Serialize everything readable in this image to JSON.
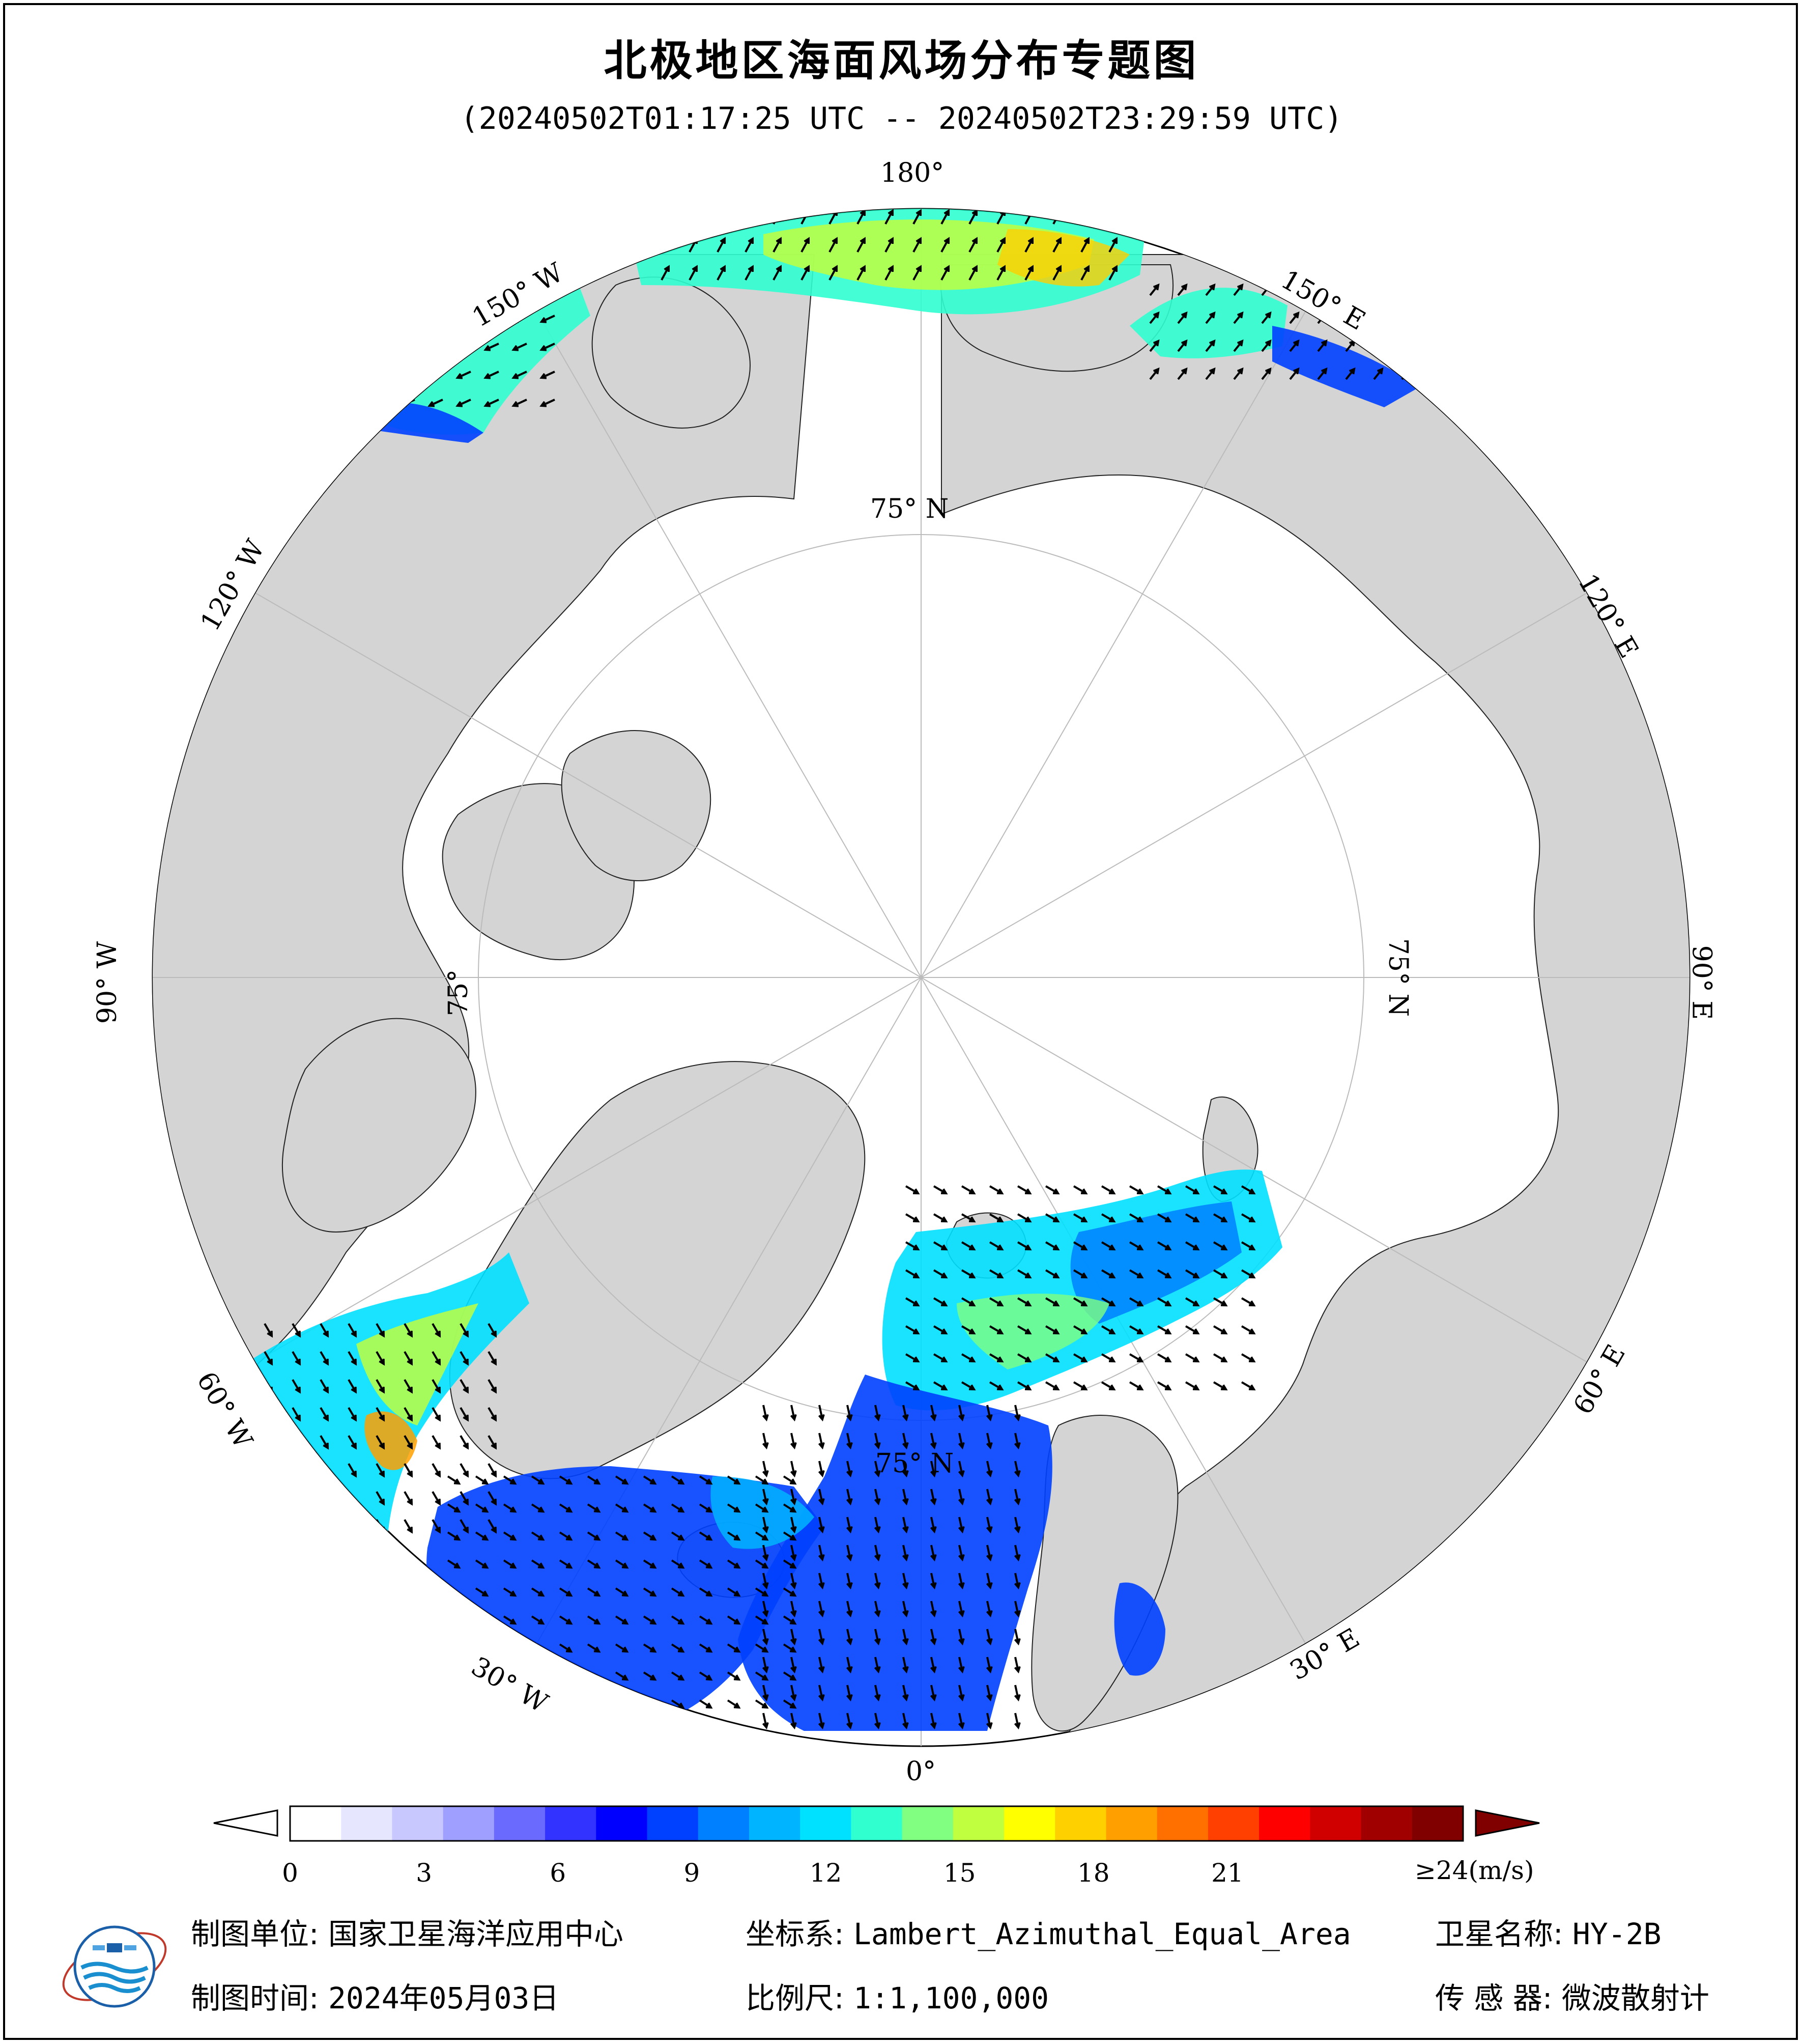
{
  "title": "北极地区海面风场分布专题图",
  "subtitle": "(20240502T01:17:25 UTC -- 20240502T23:29:59 UTC)",
  "map": {
    "projection": "Lambert_Azimuthal_Equal_Area",
    "center": "North Pole",
    "land_color": "#d4d4d4",
    "sea_ice_color": "#ffffff",
    "longitude_labels": {
      "lon_0": "0°",
      "lon_30e": "30° E",
      "lon_60e": "60° E",
      "lon_90e": "90° E",
      "lon_120e": "120° E",
      "lon_150e": "150° E",
      "lon_180": "180°",
      "lon_150w": "150° W",
      "lon_120w": "120° W",
      "lon_90w": "90° W",
      "lon_60w": "60° W",
      "lon_30w": "30° W"
    },
    "latitude_labels": {
      "lat_top": "75° N",
      "lat_right": "75° N",
      "lat_left": "75°",
      "lat_bottom": "75° N"
    }
  },
  "colorbar": {
    "unit_label": "≥24(m/s)",
    "ticks": [
      "0",
      "3",
      "6",
      "9",
      "12",
      "15",
      "18",
      "21"
    ],
    "min": 0,
    "max": 24,
    "colors": [
      "#ffffff",
      "#e6e6ff",
      "#c8c8ff",
      "#9f9fff",
      "#6a6aff",
      "#3333ff",
      "#0000ff",
      "#0040ff",
      "#0080ff",
      "#00b4ff",
      "#00e0ff",
      "#30ffd0",
      "#80ff80",
      "#c0ff40",
      "#ffff00",
      "#ffd000",
      "#ffa000",
      "#ff7000",
      "#ff4000",
      "#ff0000",
      "#d00000",
      "#a00000",
      "#800000"
    ],
    "overflow_color": "#800000"
  },
  "footer": {
    "producer_label": "制图单位:",
    "producer_value": "国家卫星海洋应用中心",
    "date_label": "制图时间:",
    "date_value": "2024年05月03日",
    "crs_label": "坐标系:",
    "crs_value": "Lambert_Azimuthal_Equal_Area",
    "scale_label": "比例尺:",
    "scale_value": "1:1,100,000",
    "satellite_label": "卫星名称:",
    "satellite_value": "HY-2B",
    "sensor_label": "传 感 器:",
    "sensor_value": "微波散射计"
  }
}
